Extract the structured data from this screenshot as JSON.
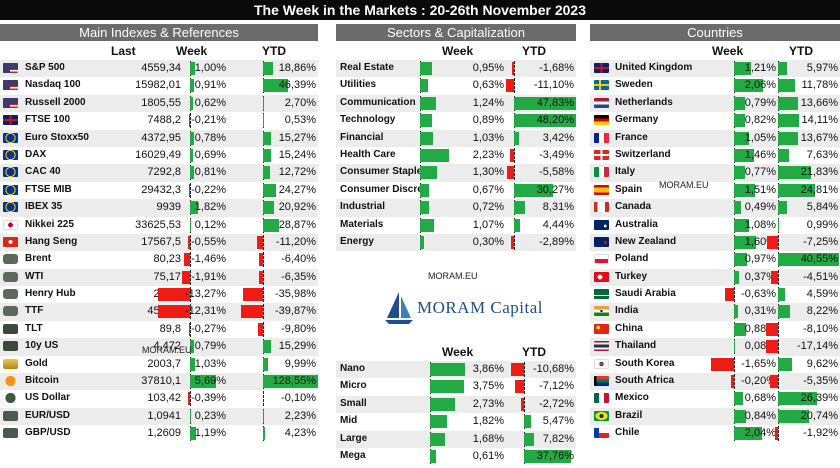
{
  "title": "The Week in the Markets : 20-26th November 2023",
  "watermark": "MORAM.EU",
  "logo_text": "MORAM Capital",
  "panels": {
    "indexes": {
      "header": "Main Indexes & References",
      "col_last": "Last",
      "col_week": "Week",
      "col_ytd": "YTD",
      "rows": [
        {
          "icon": "us-flag-icon",
          "name": "S&P 500",
          "last": "4559,34",
          "week": 1.0,
          "week_label": "1,00%",
          "ytd": 18.86,
          "ytd_label": "18,86%"
        },
        {
          "icon": "us-flag-icon",
          "name": "Nasdaq 100",
          "last": "15982,01",
          "week": 0.91,
          "week_label": "0,91%",
          "ytd": 46.39,
          "ytd_label": "46,39%"
        },
        {
          "icon": "us-flag-icon",
          "name": "Russell 2000",
          "last": "1805,55",
          "week": 0.62,
          "week_label": "0,62%",
          "ytd": 2.7,
          "ytd_label": "2,70%"
        },
        {
          "icon": "uk-flag-icon",
          "name": "FTSE 100",
          "last": "7488,2",
          "week": -0.21,
          "week_label": "-0,21%",
          "ytd": 0.53,
          "ytd_label": "0,53%"
        },
        {
          "icon": "eu-flag-icon",
          "name": "Euro Stoxx50",
          "last": "4372,95",
          "week": 0.78,
          "week_label": "0,78%",
          "ytd": 15.27,
          "ytd_label": "15,27%"
        },
        {
          "icon": "eu-flag-icon",
          "name": "DAX",
          "last": "16029,49",
          "week": 0.69,
          "week_label": "0,69%",
          "ytd": 15.24,
          "ytd_label": "15,24%"
        },
        {
          "icon": "eu-flag-icon",
          "name": "CAC 40",
          "last": "7292,8",
          "week": 0.81,
          "week_label": "0,81%",
          "ytd": 12.72,
          "ytd_label": "12,72%"
        },
        {
          "icon": "eu-flag-icon",
          "name": "FTSE MIB",
          "last": "29432,3",
          "week": -0.22,
          "week_label": "-0,22%",
          "ytd": 24.27,
          "ytd_label": "24,27%"
        },
        {
          "icon": "eu-flag-icon",
          "name": "IBEX 35",
          "last": "9939",
          "week": 1.82,
          "week_label": "1,82%",
          "ytd": 20.92,
          "ytd_label": "20,92%"
        },
        {
          "icon": "japan-flag-icon",
          "name": "Nikkei 225",
          "last": "33625,53",
          "week": 0.12,
          "week_label": "0,12%",
          "ytd": 28.87,
          "ytd_label": "28,87%"
        },
        {
          "icon": "hongkong-flag-icon",
          "name": "Hang Seng",
          "last": "17567,5",
          "week": -0.55,
          "week_label": "-0,55%",
          "ytd": -11.2,
          "ytd_label": "-11,20%"
        },
        {
          "icon": "bull-icon",
          "name": "Brent",
          "last": "80,23",
          "week": -1.46,
          "week_label": "-1,46%",
          "ytd": -6.4,
          "ytd_label": "-6,40%"
        },
        {
          "icon": "bull-icon",
          "name": "WTI",
          "last": "75,17",
          "week": -1.91,
          "week_label": "-1,91%",
          "ytd": -6.35,
          "ytd_label": "-6,35%"
        },
        {
          "icon": "bull-icon",
          "name": "Henry Hub",
          "last": "2,865",
          "week": -13.27,
          "week_label": "-13,27%",
          "ytd": -35.98,
          "ytd_label": "-35,98%"
        },
        {
          "icon": "bull-icon",
          "name": "TTF",
          "last": "45,885",
          "week": -12.31,
          "week_label": "-12,31%",
          "ytd": -39.87,
          "ytd_label": "-39,87%"
        },
        {
          "icon": "bond-icon",
          "name": "TLT",
          "last": "89,8",
          "week": -0.27,
          "week_label": "-0,27%",
          "ytd": -9.8,
          "ytd_label": "-9,80%"
        },
        {
          "icon": "bond-icon",
          "name": "10y US",
          "last": "4,472",
          "week": 0.79,
          "week_label": "0,79%",
          "ytd": 15.29,
          "ytd_label": "15,29%"
        },
        {
          "icon": "gold-icon",
          "name": "Gold",
          "last": "2003,7",
          "week": 1.03,
          "week_label": "1,03%",
          "ytd": 9.99,
          "ytd_label": "9,99%"
        },
        {
          "icon": "bitcoin-icon",
          "name": "Bitcoin",
          "last": "37810,1",
          "week": 5.69,
          "week_label": "5,69%",
          "ytd": 128.55,
          "ytd_label": "128,55%"
        },
        {
          "icon": "dollar-icon",
          "name": "US Dollar",
          "last": "103,42",
          "week": -0.39,
          "week_label": "-0,39%",
          "ytd": -0.1,
          "ytd_label": "-0,10%"
        },
        {
          "icon": "currency-icon",
          "name": "EUR/USD",
          "last": "1,0941",
          "week": 0.23,
          "week_label": "0,23%",
          "ytd": 2.23,
          "ytd_label": "2,23%"
        },
        {
          "icon": "currency-icon",
          "name": "GBP/USD",
          "last": "1,2609",
          "week": 1.19,
          "week_label": "1,19%",
          "ytd": 4.23,
          "ytd_label": "4,23%"
        }
      ]
    },
    "sectors": {
      "header": "Sectors & Capitalization",
      "col_week": "Week",
      "col_ytd": "YTD",
      "rows": [
        {
          "name": "Real Estate",
          "week": 0.95,
          "week_label": "0,95%",
          "ytd": -1.68,
          "ytd_label": "-1,68%"
        },
        {
          "name": "Utilities",
          "week": 0.63,
          "week_label": "0,63%",
          "ytd": -11.1,
          "ytd_label": "-11,10%"
        },
        {
          "name": "Communication",
          "week": 1.24,
          "week_label": "1,24%",
          "ytd": 47.83,
          "ytd_label": "47,83%"
        },
        {
          "name": "Technology",
          "week": 0.89,
          "week_label": "0,89%",
          "ytd": 48.2,
          "ytd_label": "48,20%"
        },
        {
          "name": "Financial",
          "week": 1.03,
          "week_label": "1,03%",
          "ytd": 3.42,
          "ytd_label": "3,42%"
        },
        {
          "name": "Health Care",
          "week": 2.23,
          "week_label": "2,23%",
          "ytd": -3.49,
          "ytd_label": "-3,49%"
        },
        {
          "name": "Consumer Staple",
          "week": 1.3,
          "week_label": "1,30%",
          "ytd": -5.58,
          "ytd_label": "-5,58%"
        },
        {
          "name": "Consumer Discre",
          "week": 0.67,
          "week_label": "0,67%",
          "ytd": 30.27,
          "ytd_label": "30,27%"
        },
        {
          "name": "Industrial",
          "week": 0.72,
          "week_label": "0,72%",
          "ytd": 8.31,
          "ytd_label": "8,31%"
        },
        {
          "name": "Materials",
          "week": 1.07,
          "week_label": "1,07%",
          "ytd": 4.44,
          "ytd_label": "4,44%"
        },
        {
          "name": "Energy",
          "week": 0.3,
          "week_label": "0,30%",
          "ytd": -2.89,
          "ytd_label": "-2,89%"
        }
      ],
      "cap_col_week": "Week",
      "cap_col_ytd": "YTD",
      "cap_rows": [
        {
          "name": "Nano",
          "week": 3.86,
          "week_label": "3,86%",
          "ytd": -10.68,
          "ytd_label": "-10,68%"
        },
        {
          "name": "Micro",
          "week": 3.75,
          "week_label": "3,75%",
          "ytd": -7.12,
          "ytd_label": "-7,12%"
        },
        {
          "name": "Small",
          "week": 2.73,
          "week_label": "2,73%",
          "ytd": -2.72,
          "ytd_label": "-2,72%"
        },
        {
          "name": "Mid",
          "week": 1.82,
          "week_label": "1,82%",
          "ytd": 5.47,
          "ytd_label": "5,47%"
        },
        {
          "name": "Large",
          "week": 1.68,
          "week_label": "1,68%",
          "ytd": 7.82,
          "ytd_label": "7,82%"
        },
        {
          "name": "Mega",
          "week": 0.61,
          "week_label": "0,61%",
          "ytd": 37.76,
          "ytd_label": "37,76%"
        }
      ]
    },
    "countries": {
      "header": "Countries",
      "col_week": "Week",
      "col_ytd": "YTD",
      "rows": [
        {
          "icon": "uk-flag-icon",
          "name": "United Kingdom",
          "week": 1.21,
          "week_label": "1,21%",
          "ytd": 5.97,
          "ytd_label": "5,97%"
        },
        {
          "icon": "sweden-flag-icon",
          "name": "Sweden",
          "week": 2.06,
          "week_label": "2,06%",
          "ytd": 11.78,
          "ytd_label": "11,78%"
        },
        {
          "icon": "netherlands-flag-icon",
          "name": "Netherlands",
          "week": 0.79,
          "week_label": "0,79%",
          "ytd": 13.66,
          "ytd_label": "13,66%"
        },
        {
          "icon": "germany-flag-icon",
          "name": "Germany",
          "week": 0.82,
          "week_label": "0,82%",
          "ytd": 14.11,
          "ytd_label": "14,11%"
        },
        {
          "icon": "france-flag-icon",
          "name": "France",
          "week": 1.05,
          "week_label": "1,05%",
          "ytd": 13.67,
          "ytd_label": "13,67%"
        },
        {
          "icon": "switzerland-flag-icon",
          "name": "Switzerland",
          "week": 1.46,
          "week_label": "1,46%",
          "ytd": 7.63,
          "ytd_label": "7,63%"
        },
        {
          "icon": "italy-flag-icon",
          "name": "Italy",
          "week": 0.77,
          "week_label": "0,77%",
          "ytd": 21.83,
          "ytd_label": "21,83%"
        },
        {
          "icon": "spain-flag-icon",
          "name": "Spain",
          "week": 1.51,
          "week_label": "1,51%",
          "ytd": 24.81,
          "ytd_label": "24,81%"
        },
        {
          "icon": "canada-flag-icon",
          "name": "Canada",
          "week": 0.49,
          "week_label": "0,49%",
          "ytd": 5.84,
          "ytd_label": "5,84%"
        },
        {
          "icon": "australia-flag-icon",
          "name": "Australia",
          "week": 1.08,
          "week_label": "1,08%",
          "ytd": 0.99,
          "ytd_label": "0,99%"
        },
        {
          "icon": "newzealand-flag-icon",
          "name": "New Zealand",
          "week": 1.6,
          "week_label": "1,60%",
          "ytd": -7.25,
          "ytd_label": "-7,25%"
        },
        {
          "icon": "poland-flag-icon",
          "name": "Poland",
          "week": 0.97,
          "week_label": "0,97%",
          "ytd": 40.55,
          "ytd_label": "40,55%"
        },
        {
          "icon": "turkey-flag-icon",
          "name": "Turkey",
          "week": 0.37,
          "week_label": "0,37%",
          "ytd": -4.51,
          "ytd_label": "-4,51%"
        },
        {
          "icon": "saudiarabia-flag-icon",
          "name": "Saudi Arabia",
          "week": -0.63,
          "week_label": "-0,63%",
          "ytd": 4.59,
          "ytd_label": "4,59%"
        },
        {
          "icon": "india-flag-icon",
          "name": "India",
          "week": 0.31,
          "week_label": "0,31%",
          "ytd": 8.22,
          "ytd_label": "8,22%"
        },
        {
          "icon": "china-flag-icon",
          "name": "China",
          "week": 0.88,
          "week_label": "0,88%",
          "ytd": -8.1,
          "ytd_label": "-8,10%"
        },
        {
          "icon": "thailand-flag-icon",
          "name": "Thailand",
          "week": 0.08,
          "week_label": "0,08%",
          "ytd": -17.14,
          "ytd_label": "-17,14%"
        },
        {
          "icon": "southkorea-flag-icon",
          "name": "South Korea",
          "week": -1.65,
          "week_label": "-1,65%",
          "ytd": 9.62,
          "ytd_label": "9,62%"
        },
        {
          "icon": "southafrica-flag-icon",
          "name": "South Africa",
          "week": -0.2,
          "week_label": "-0,20%",
          "ytd": -5.35,
          "ytd_label": "-5,35%"
        },
        {
          "icon": "mexico-flag-icon",
          "name": "Mexico",
          "week": 0.68,
          "week_label": "0,68%",
          "ytd": 26.39,
          "ytd_label": "26,39%"
        },
        {
          "icon": "brazil-flag-icon",
          "name": "Brazil",
          "week": 0.84,
          "week_label": "0,84%",
          "ytd": 20.74,
          "ytd_label": "20,74%"
        },
        {
          "icon": "chile-flag-icon",
          "name": "Chile",
          "week": 2.04,
          "week_label": "2,04%",
          "ytd": -1.92,
          "ytd_label": "-1,92%"
        }
      ]
    }
  },
  "colors": {
    "positive": "#22aa44",
    "negative": "#ee1c14",
    "header": "#6b6b6b",
    "title_bg": "#0a0a0a",
    "logo": "#1f4e8c"
  }
}
